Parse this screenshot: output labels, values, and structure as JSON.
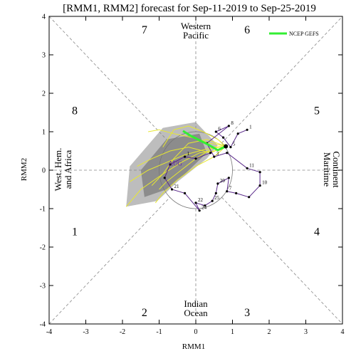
{
  "chart_data": {
    "type": "line",
    "title": "[RMM1, RMM2] forecast for Sep-11-2019 to Sep-25-2019",
    "xlabel": "RMM1",
    "ylabel": "RMM2",
    "xlim": [
      -4,
      4
    ],
    "ylim": [
      -4,
      4
    ],
    "xticks": [
      "-4",
      "-3",
      "-2",
      "-1",
      "0",
      "1",
      "2",
      "3",
      "4"
    ],
    "yticks": [
      "-4",
      "-3",
      "-2",
      "-1",
      "0",
      "1",
      "2",
      "3",
      "4"
    ],
    "phases": [
      "1",
      "2",
      "3",
      "4",
      "5",
      "6",
      "7",
      "8"
    ],
    "regions": {
      "top": [
        "Western",
        "Pacific"
      ],
      "bottom": [
        "Indian",
        "Ocean"
      ],
      "left": [
        "West. Hem.",
        "and Africa"
      ],
      "right": [
        "Maritime",
        "Continent"
      ]
    },
    "legend": [
      {
        "name": "NCEP GEFS",
        "color": "#33ee33"
      }
    ],
    "month_labels": [
      "AUG"
    ],
    "ensemble_mean": {
      "name": "NCEP GEFS",
      "color": "#33ee33",
      "x": [
        0.82,
        0.6,
        0.35,
        0.1,
        -0.15,
        -0.35
      ],
      "y": [
        0.62,
        0.52,
        0.66,
        0.78,
        0.9,
        1.02
      ]
    },
    "observed": {
      "color": "#5a2a8a",
      "points": [
        {
          "label": "1",
          "x": 1.4,
          "y": 1.05
        },
        {
          "label": "",
          "x": 1.15,
          "y": 0.95
        },
        {
          "label": "5",
          "x": 0.95,
          "y": 0.6
        },
        {
          "label": "",
          "x": 0.75,
          "y": 0.85
        },
        {
          "label": "6",
          "x": 0.55,
          "y": 1.0
        },
        {
          "label": "8",
          "x": 0.9,
          "y": 1.15
        },
        {
          "label": "",
          "x": 0.3,
          "y": 0.7
        },
        {
          "label": "3",
          "x": 0.5,
          "y": 0.35
        },
        {
          "label": "",
          "x": 0.85,
          "y": 0.45
        },
        {
          "label": "11",
          "x": 1.4,
          "y": 0.05
        },
        {
          "label": "",
          "x": 1.75,
          "y": -0.05
        },
        {
          "label": "10",
          "x": 1.75,
          "y": -0.4
        },
        {
          "label": "",
          "x": 1.45,
          "y": -0.7
        },
        {
          "label": "",
          "x": 1.1,
          "y": -0.6
        },
        {
          "label": "7",
          "x": 0.85,
          "y": -0.55
        },
        {
          "label": "",
          "x": 0.9,
          "y": -0.2
        },
        {
          "label": "20",
          "x": 0.6,
          "y": -0.35
        },
        {
          "label": "",
          "x": 0.55,
          "y": -0.6
        },
        {
          "label": "25",
          "x": 0.45,
          "y": -0.8
        },
        {
          "label": "",
          "x": 0.25,
          "y": -0.92
        },
        {
          "label": "22",
          "x": 0.0,
          "y": -0.85
        },
        {
          "label": "24",
          "x": 0.1,
          "y": -1.05
        },
        {
          "label": "",
          "x": -0.3,
          "y": -0.6
        },
        {
          "label": "21",
          "x": -0.65,
          "y": -0.5
        },
        {
          "label": "",
          "x": -0.85,
          "y": -0.2
        },
        {
          "label": "",
          "x": -0.7,
          "y": 0.15
        },
        {
          "label": "1",
          "x": -0.3,
          "y": 0.35
        },
        {
          "label": "",
          "x": 0.0,
          "y": 0.3
        },
        {
          "label": "",
          "x": 0.4,
          "y": 0.45
        }
      ]
    },
    "ensemble_spread_outer": [
      [
        -1.9,
        -0.95
      ],
      [
        -1.8,
        0.1
      ],
      [
        -0.9,
        1.1
      ],
      [
        0.0,
        1.25
      ],
      [
        0.6,
        0.65
      ],
      [
        0.3,
        0.3
      ],
      [
        -0.5,
        -0.3
      ],
      [
        -1.05,
        -0.8
      ]
    ],
    "ensemble_spread_inner": [
      [
        -1.4,
        -0.7
      ],
      [
        -1.5,
        0.0
      ],
      [
        -0.8,
        0.8
      ],
      [
        0.1,
        0.95
      ],
      [
        0.3,
        0.45
      ],
      [
        -0.3,
        -0.1
      ],
      [
        -0.8,
        -0.5
      ]
    ],
    "members": [
      {
        "x": [
          0.82,
          0.5,
          0.1,
          -0.4,
          -0.9,
          -1.5,
          -1.9
        ],
        "y": [
          0.62,
          0.5,
          0.45,
          0.2,
          -0.1,
          -0.5,
          -0.95
        ]
      },
      {
        "x": [
          0.82,
          0.4,
          -0.1,
          -0.6,
          -1.0,
          -1.3
        ],
        "y": [
          0.62,
          0.7,
          0.85,
          0.95,
          1.05,
          1.0
        ]
      },
      {
        "x": [
          0.82,
          0.3,
          -0.3,
          -0.8,
          -1.3,
          -1.8
        ],
        "y": [
          0.62,
          0.55,
          0.4,
          0.2,
          0.0,
          -0.3
        ]
      },
      {
        "x": [
          0.82,
          0.5,
          0.0,
          -0.5,
          -0.9,
          -1.1
        ],
        "y": [
          0.62,
          0.35,
          0.1,
          -0.25,
          -0.6,
          -0.85
        ]
      },
      {
        "x": [
          0.82,
          0.6,
          0.2,
          -0.2,
          -0.6,
          -0.9
        ],
        "y": [
          0.62,
          0.8,
          1.0,
          1.15,
          1.05,
          0.6
        ]
      },
      {
        "x": [
          0.82,
          0.4,
          -0.2,
          -0.7,
          -1.2,
          -1.6
        ],
        "y": [
          0.62,
          0.45,
          0.6,
          0.5,
          0.3,
          0.1
        ]
      },
      {
        "x": [
          0.82,
          0.5,
          0.0,
          -0.4,
          -0.8,
          -1.0
        ],
        "y": [
          0.62,
          0.6,
          0.3,
          0.0,
          -0.3,
          -0.5
        ]
      },
      {
        "x": [
          0.82,
          0.3,
          -0.2,
          -0.6,
          -0.9,
          -1.2
        ],
        "y": [
          0.62,
          0.8,
          0.7,
          0.3,
          -0.1,
          -0.4
        ]
      }
    ],
    "amplitude_circle_radius": 1,
    "grid": false
  }
}
